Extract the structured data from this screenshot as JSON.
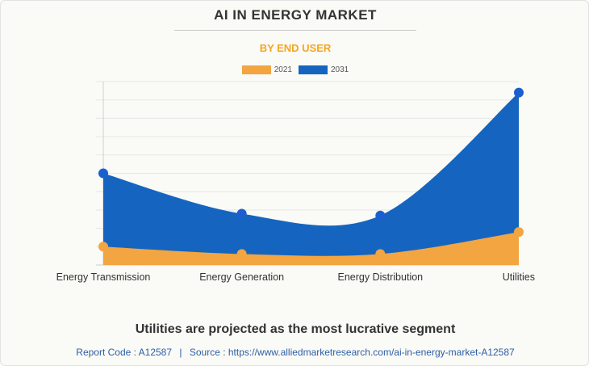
{
  "colors": {
    "series_2021": "#f2a541",
    "series_2031": "#1565c0",
    "dot_2031": "#1a5fcf"
  },
  "chart_data": {
    "type": "area",
    "title": "AI IN ENERGY MARKET",
    "subtitle": "BY END USER",
    "categories": [
      "Energy Transmission",
      "Energy Generation",
      "Energy Distribution",
      "Utilities"
    ],
    "series": [
      {
        "name": "2021",
        "values": [
          10,
          6,
          6,
          18
        ]
      },
      {
        "name": "2031",
        "values": [
          50,
          28,
          27,
          94
        ]
      }
    ],
    "ylim": [
      0,
      100
    ],
    "grid": true,
    "legend": "top-center"
  },
  "headline": "Utilities are projected as the most lucrative segment",
  "footer": {
    "report_code_label": "Report Code : A12587",
    "separator": "|",
    "source_label": "Source : https://www.alliedmarketresearch.com/ai-in-energy-market-A12587"
  }
}
